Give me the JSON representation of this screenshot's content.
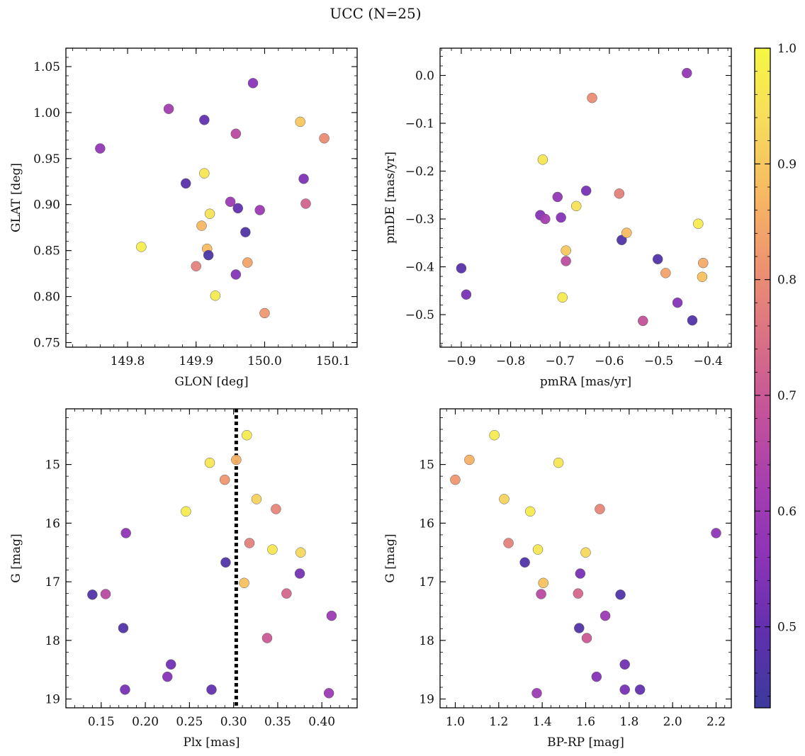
{
  "title": "UCC (N=25)",
  "colorbar": {
    "vmin": 0.43,
    "vmax": 1.0,
    "ticks": [
      "0.5",
      "0.6",
      "0.7",
      "0.8",
      "0.9",
      "1.0"
    ],
    "tick_values": [
      0.5,
      0.6,
      0.7,
      0.8,
      0.9,
      1.0
    ],
    "colormap": "plasma-like",
    "stops": [
      "#3c3a9c",
      "#5e30ae",
      "#8a33b8",
      "#a43db0",
      "#c4529a",
      "#da6f86",
      "#ed9171",
      "#f7b862",
      "#f6dc5c",
      "#f5f744"
    ]
  },
  "chart_data": [
    {
      "type": "scatter",
      "id": "glon-glat",
      "xlabel": "GLON [deg]",
      "ylabel": "GLAT [deg]",
      "xlim": [
        149.71,
        150.135
      ],
      "ylim": [
        0.745,
        1.07
      ],
      "x_ticks": [
        149.8,
        149.9,
        150.0,
        150.1
      ],
      "x_tick_labels": [
        "149.8",
        "149.9",
        "150.0",
        "150.1"
      ],
      "y_ticks": [
        0.75,
        0.8,
        0.85,
        0.9,
        0.95,
        1.0,
        1.05
      ],
      "y_tick_labels": [
        "0.75",
        "0.80",
        "0.85",
        "0.90",
        "0.95",
        "1.00",
        "1.05"
      ],
      "points": [
        {
          "x": 149.76,
          "y": 0.961,
          "c": 0.58
        },
        {
          "x": 149.82,
          "y": 0.854,
          "c": 0.98
        },
        {
          "x": 149.86,
          "y": 1.004,
          "c": 0.62
        },
        {
          "x": 149.885,
          "y": 0.923,
          "c": 0.48
        },
        {
          "x": 149.9,
          "y": 0.833,
          "c": 0.78
        },
        {
          "x": 149.908,
          "y": 0.877,
          "c": 0.87
        },
        {
          "x": 149.912,
          "y": 0.992,
          "c": 0.5
        },
        {
          "x": 149.912,
          "y": 0.934,
          "c": 0.96
        },
        {
          "x": 149.916,
          "y": 0.852,
          "c": 0.88
        },
        {
          "x": 149.918,
          "y": 0.845,
          "c": 0.46
        },
        {
          "x": 149.92,
          "y": 0.89,
          "c": 0.95
        },
        {
          "x": 149.928,
          "y": 0.801,
          "c": 0.97
        },
        {
          "x": 149.95,
          "y": 0.903,
          "c": 0.6
        },
        {
          "x": 149.958,
          "y": 0.824,
          "c": 0.55
        },
        {
          "x": 149.958,
          "y": 0.977,
          "c": 0.66
        },
        {
          "x": 149.961,
          "y": 0.896,
          "c": 0.5
        },
        {
          "x": 149.972,
          "y": 0.87,
          "c": 0.47
        },
        {
          "x": 149.975,
          "y": 0.837,
          "c": 0.84
        },
        {
          "x": 149.983,
          "y": 1.032,
          "c": 0.56
        },
        {
          "x": 149.993,
          "y": 0.894,
          "c": 0.6
        },
        {
          "x": 150.0,
          "y": 0.782,
          "c": 0.82
        },
        {
          "x": 150.052,
          "y": 0.99,
          "c": 0.9
        },
        {
          "x": 150.057,
          "y": 0.928,
          "c": 0.54
        },
        {
          "x": 150.06,
          "y": 0.901,
          "c": 0.72
        },
        {
          "x": 150.087,
          "y": 0.972,
          "c": 0.8
        }
      ]
    },
    {
      "type": "scatter",
      "id": "pm",
      "xlabel": "pmRA [mas/yr]",
      "ylabel": "pmDE [mas/yr]",
      "xlim": [
        -0.943,
        -0.353
      ],
      "ylim": [
        -0.568,
        0.057
      ],
      "x_ticks": [
        -0.9,
        -0.8,
        -0.7,
        -0.6,
        -0.5,
        -0.4
      ],
      "x_tick_labels": [
        "−0.9",
        "−0.8",
        "−0.7",
        "−0.6",
        "−0.5",
        "−0.4"
      ],
      "y_ticks": [
        -0.5,
        -0.4,
        -0.3,
        -0.2,
        -0.1,
        0.0
      ],
      "y_tick_labels": [
        "−0.5",
        "−0.4",
        "−0.3",
        "−0.2",
        "−0.1",
        "0.0"
      ],
      "points": [
        {
          "x": -0.9,
          "y": -0.403,
          "c": 0.48
        },
        {
          "x": -0.89,
          "y": -0.458,
          "c": 0.53
        },
        {
          "x": -0.74,
          "y": -0.292,
          "c": 0.55
        },
        {
          "x": -0.735,
          "y": -0.176,
          "c": 0.96
        },
        {
          "x": -0.73,
          "y": -0.3,
          "c": 0.62
        },
        {
          "x": -0.705,
          "y": -0.254,
          "c": 0.58
        },
        {
          "x": -0.698,
          "y": -0.297,
          "c": 0.55
        },
        {
          "x": -0.695,
          "y": -0.464,
          "c": 0.97
        },
        {
          "x": -0.688,
          "y": -0.366,
          "c": 0.9
        },
        {
          "x": -0.688,
          "y": -0.388,
          "c": 0.67
        },
        {
          "x": -0.667,
          "y": -0.273,
          "c": 0.95
        },
        {
          "x": -0.647,
          "y": -0.241,
          "c": 0.53
        },
        {
          "x": -0.635,
          "y": -0.047,
          "c": 0.8
        },
        {
          "x": -0.58,
          "y": -0.247,
          "c": 0.78
        },
        {
          "x": -0.575,
          "y": -0.344,
          "c": 0.47
        },
        {
          "x": -0.565,
          "y": -0.329,
          "c": 0.88
        },
        {
          "x": -0.532,
          "y": -0.513,
          "c": 0.68
        },
        {
          "x": -0.502,
          "y": -0.384,
          "c": 0.47
        },
        {
          "x": -0.486,
          "y": -0.413,
          "c": 0.84
        },
        {
          "x": -0.462,
          "y": -0.475,
          "c": 0.55
        },
        {
          "x": -0.443,
          "y": 0.005,
          "c": 0.58
        },
        {
          "x": -0.432,
          "y": -0.512,
          "c": 0.47
        },
        {
          "x": -0.42,
          "y": -0.31,
          "c": 0.97
        },
        {
          "x": -0.412,
          "y": -0.421,
          "c": 0.89
        },
        {
          "x": -0.41,
          "y": -0.392,
          "c": 0.85
        }
      ]
    },
    {
      "type": "scatter",
      "id": "plx-g",
      "xlabel": "Plx [mas]",
      "ylabel": "G [mag]",
      "xlim": [
        0.11,
        0.44
      ],
      "ylim": [
        19.15,
        14.05
      ],
      "x_ticks": [
        0.15,
        0.2,
        0.25,
        0.3,
        0.35,
        0.4
      ],
      "x_tick_labels": [
        "0.15",
        "0.20",
        "0.25",
        "0.30",
        "0.35",
        "0.40"
      ],
      "y_ticks": [
        15,
        16,
        17,
        18,
        19
      ],
      "y_tick_labels": [
        "15",
        "16",
        "17",
        "18",
        "19"
      ],
      "vline": 0.303,
      "points": [
        {
          "x": 0.14,
          "y": 17.22,
          "c": 0.47
        },
        {
          "x": 0.155,
          "y": 17.21,
          "c": 0.66
        },
        {
          "x": 0.175,
          "y": 17.79,
          "c": 0.47
        },
        {
          "x": 0.177,
          "y": 18.84,
          "c": 0.53
        },
        {
          "x": 0.178,
          "y": 16.17,
          "c": 0.57
        },
        {
          "x": 0.225,
          "y": 18.62,
          "c": 0.55
        },
        {
          "x": 0.229,
          "y": 18.41,
          "c": 0.52
        },
        {
          "x": 0.246,
          "y": 15.8,
          "c": 0.97
        },
        {
          "x": 0.273,
          "y": 14.97,
          "c": 0.96
        },
        {
          "x": 0.275,
          "y": 18.84,
          "c": 0.5
        },
        {
          "x": 0.29,
          "y": 15.26,
          "c": 0.82
        },
        {
          "x": 0.291,
          "y": 16.67,
          "c": 0.47
        },
        {
          "x": 0.303,
          "y": 14.92,
          "c": 0.86
        },
        {
          "x": 0.312,
          "y": 17.02,
          "c": 0.89
        },
        {
          "x": 0.315,
          "y": 14.5,
          "c": 0.97
        },
        {
          "x": 0.318,
          "y": 16.34,
          "c": 0.78
        },
        {
          "x": 0.326,
          "y": 15.59,
          "c": 0.92
        },
        {
          "x": 0.338,
          "y": 17.96,
          "c": 0.7
        },
        {
          "x": 0.344,
          "y": 16.45,
          "c": 0.96
        },
        {
          "x": 0.348,
          "y": 15.76,
          "c": 0.79
        },
        {
          "x": 0.36,
          "y": 17.2,
          "c": 0.73
        },
        {
          "x": 0.375,
          "y": 16.86,
          "c": 0.53
        },
        {
          "x": 0.376,
          "y": 16.5,
          "c": 0.93
        },
        {
          "x": 0.408,
          "y": 18.9,
          "c": 0.6
        },
        {
          "x": 0.411,
          "y": 17.58,
          "c": 0.6
        }
      ]
    },
    {
      "type": "scatter",
      "id": "cmd",
      "xlabel": "BP-RP [mag]",
      "ylabel": "G [mag]",
      "xlim": [
        0.93,
        2.27
      ],
      "ylim": [
        19.15,
        14.05
      ],
      "x_ticks": [
        1.0,
        1.2,
        1.4,
        1.6,
        1.8,
        2.0,
        2.2
      ],
      "x_tick_labels": [
        "1.0",
        "1.2",
        "1.4",
        "1.6",
        "1.8",
        "2.0",
        "2.2"
      ],
      "y_ticks": [
        15,
        16,
        17,
        18,
        19
      ],
      "y_tick_labels": [
        "15",
        "16",
        "17",
        "18",
        "19"
      ],
      "points": [
        {
          "x": 1.0,
          "y": 15.26,
          "c": 0.82
        },
        {
          "x": 1.065,
          "y": 14.92,
          "c": 0.86
        },
        {
          "x": 1.18,
          "y": 14.5,
          "c": 0.97
        },
        {
          "x": 1.225,
          "y": 15.59,
          "c": 0.92
        },
        {
          "x": 1.245,
          "y": 16.34,
          "c": 0.78
        },
        {
          "x": 1.32,
          "y": 16.67,
          "c": 0.47
        },
        {
          "x": 1.345,
          "y": 15.8,
          "c": 0.97
        },
        {
          "x": 1.375,
          "y": 18.9,
          "c": 0.6
        },
        {
          "x": 1.38,
          "y": 16.45,
          "c": 0.96
        },
        {
          "x": 1.395,
          "y": 17.21,
          "c": 0.66
        },
        {
          "x": 1.405,
          "y": 17.02,
          "c": 0.89
        },
        {
          "x": 1.475,
          "y": 14.97,
          "c": 0.96
        },
        {
          "x": 1.565,
          "y": 17.2,
          "c": 0.73
        },
        {
          "x": 1.57,
          "y": 17.79,
          "c": 0.47
        },
        {
          "x": 1.575,
          "y": 16.86,
          "c": 0.53
        },
        {
          "x": 1.6,
          "y": 16.5,
          "c": 0.93
        },
        {
          "x": 1.605,
          "y": 17.96,
          "c": 0.7
        },
        {
          "x": 1.65,
          "y": 18.62,
          "c": 0.55
        },
        {
          "x": 1.665,
          "y": 15.76,
          "c": 0.79
        },
        {
          "x": 1.69,
          "y": 17.58,
          "c": 0.6
        },
        {
          "x": 1.76,
          "y": 17.22,
          "c": 0.47
        },
        {
          "x": 1.78,
          "y": 18.41,
          "c": 0.52
        },
        {
          "x": 1.78,
          "y": 18.84,
          "c": 0.53
        },
        {
          "x": 1.85,
          "y": 18.84,
          "c": 0.5
        },
        {
          "x": 2.2,
          "y": 16.17,
          "c": 0.57
        }
      ]
    }
  ]
}
